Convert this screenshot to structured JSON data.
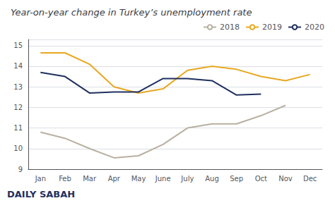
{
  "chart_data": {
    "type": "line",
    "title": "Year-on-year change in Turkey’s unemployment rate",
    "categories": [
      "Jan",
      "Feb",
      "Mar",
      "Apr",
      "May",
      "June",
      "July",
      "Aug",
      "Sep",
      "Oct",
      "Nov",
      "Dec"
    ],
    "series": [
      {
        "name": "2018",
        "color": "#b8b0a0",
        "values": [
          10.8,
          10.5,
          10.0,
          9.55,
          9.65,
          10.2,
          11.0,
          11.2,
          11.2,
          11.6,
          12.1,
          null
        ]
      },
      {
        "name": "2019",
        "color": "#e8a820",
        "values": [
          14.65,
          14.65,
          14.1,
          13.0,
          12.7,
          12.9,
          13.8,
          14.0,
          13.85,
          13.5,
          13.3,
          13.6
        ]
      },
      {
        "name": "2020",
        "color": "#1f3060",
        "values": [
          13.7,
          13.5,
          12.7,
          12.75,
          12.75,
          13.4,
          13.4,
          13.3,
          12.6,
          12.65,
          null,
          null
        ]
      }
    ],
    "ylim": [
      9,
      15.3
    ],
    "yticks": [
      9,
      10,
      11,
      12,
      13,
      14,
      15
    ],
    "grid": true,
    "legend": "upper right",
    "annotations": [
      {
        "text": "DAILY SABAH",
        "color": "#1f3060"
      }
    ]
  }
}
